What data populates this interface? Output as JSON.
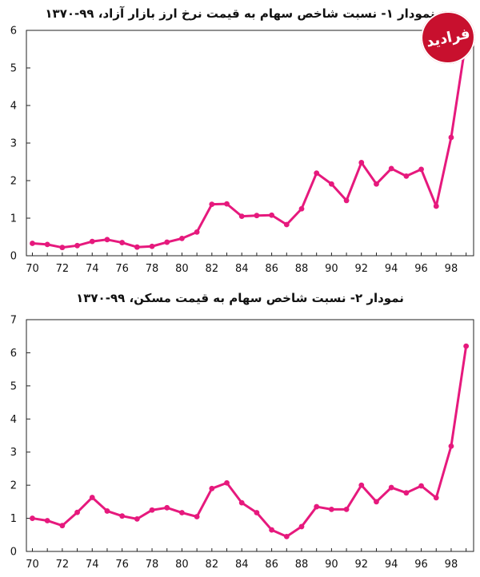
{
  "brand": {
    "logo_text": "فرادید",
    "color": "#c8102e"
  },
  "chart_data": [
    {
      "type": "line",
      "title": "نمودار ۱- نسبت شاخص سهام به قیمت نرخ ارز بازار آزاد، ۹۹-۱۳۷۰",
      "xlabel": "",
      "ylabel": "",
      "x": [
        70,
        71,
        72,
        73,
        74,
        75,
        76,
        77,
        78,
        79,
        80,
        81,
        82,
        83,
        84,
        85,
        86,
        87,
        88,
        89,
        90,
        91,
        92,
        93,
        94,
        95,
        96,
        97,
        98,
        99
      ],
      "xticks": [
        70,
        72,
        74,
        76,
        78,
        80,
        82,
        84,
        86,
        88,
        90,
        92,
        94,
        96,
        98
      ],
      "xlim": [
        69.6,
        99.5
      ],
      "ylim": [
        0,
        6
      ],
      "yticks": [
        0,
        1,
        2,
        3,
        4,
        5,
        6
      ],
      "color": "#e6197d",
      "series": [
        {
          "values": [
            0.33,
            0.3,
            0.22,
            0.27,
            0.38,
            0.43,
            0.35,
            0.23,
            0.25,
            0.36,
            0.46,
            0.63,
            1.37,
            1.38,
            1.05,
            1.07,
            1.08,
            0.83,
            1.25,
            2.2,
            1.91,
            1.47,
            2.48,
            1.91,
            2.32,
            2.12,
            2.3,
            1.32,
            3.15,
            5.75
          ]
        }
      ]
    },
    {
      "type": "line",
      "title": "نمودار ۲- نسبت شاخص سهام به قیمت مسکن، ۹۹-۱۳۷۰",
      "xlabel": "",
      "ylabel": "",
      "x": [
        70,
        71,
        72,
        73,
        74,
        75,
        76,
        77,
        78,
        79,
        80,
        81,
        82,
        83,
        84,
        85,
        86,
        87,
        88,
        89,
        90,
        91,
        92,
        93,
        94,
        95,
        96,
        97,
        98,
        99
      ],
      "xticks": [
        70,
        72,
        74,
        76,
        78,
        80,
        82,
        84,
        86,
        88,
        90,
        92,
        94,
        96,
        98
      ],
      "xlim": [
        69.6,
        99.5
      ],
      "ylim": [
        0,
        7
      ],
      "yticks": [
        0,
        1,
        2,
        3,
        4,
        5,
        6,
        7
      ],
      "color": "#e6197d",
      "series": [
        {
          "values": [
            1.0,
            0.93,
            0.78,
            1.18,
            1.63,
            1.22,
            1.07,
            0.98,
            1.25,
            1.32,
            1.17,
            1.05,
            1.9,
            2.07,
            1.47,
            1.17,
            0.65,
            0.45,
            0.75,
            1.35,
            1.27,
            1.27,
            2.0,
            1.5,
            1.93,
            1.77,
            1.98,
            1.62,
            3.18,
            6.2
          ]
        }
      ]
    }
  ]
}
